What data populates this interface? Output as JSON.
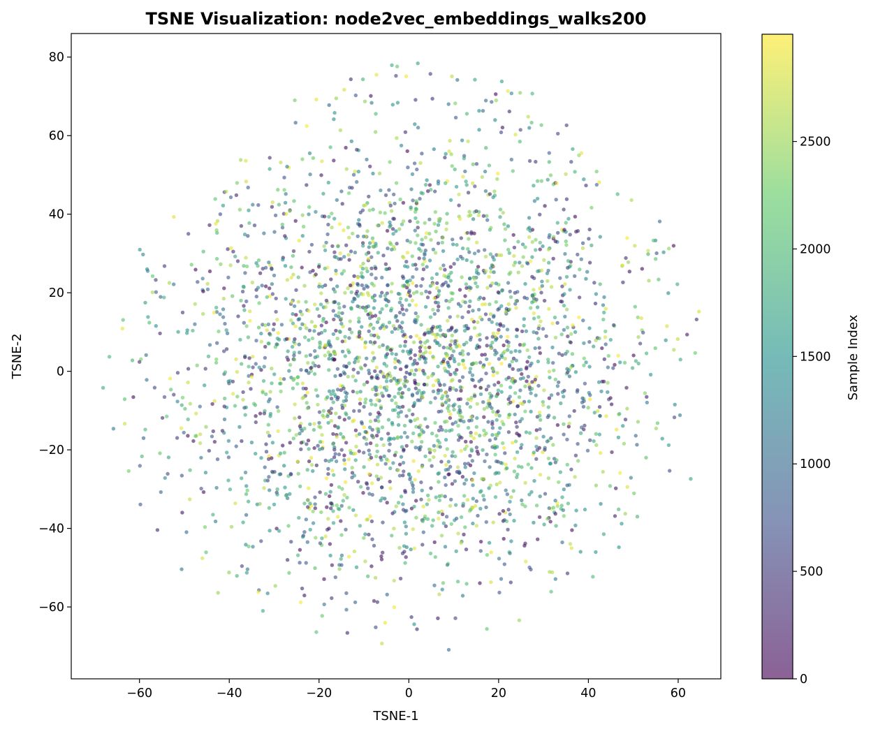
{
  "chart_data": {
    "type": "scatter",
    "title": "TSNE Visualization: node2vec_embeddings_walks200",
    "xlabel": "TSNE-1",
    "ylabel": "TSNE-2",
    "xlim": [
      -75.2,
      69.5
    ],
    "ylim": [
      -78.3,
      86.0
    ],
    "x_ticks": [
      -60,
      -40,
      -20,
      0,
      20,
      40,
      60
    ],
    "x_tick_labels": [
      "−60",
      "−40",
      "−20",
      "0",
      "20",
      "40",
      "60"
    ],
    "y_ticks": [
      -60,
      -40,
      -20,
      0,
      20,
      40,
      60,
      80
    ],
    "y_tick_labels": [
      "−60",
      "−40",
      "−20",
      "0",
      "20",
      "40",
      "60",
      "80"
    ],
    "grid": false,
    "colormap": "viridis",
    "point_alpha": 0.6,
    "n_points": 3000,
    "colorbar": {
      "label": "Sample Index",
      "min": 0,
      "max": 2999,
      "ticks": [
        0,
        500,
        1000,
        1500,
        2000,
        2500
      ],
      "tick_labels": [
        "0",
        "500",
        "1000",
        "1500",
        "2000",
        "2500"
      ]
    },
    "sample_points": [
      {
        "x": -68.1,
        "y": -4.2,
        "c": 1800
      },
      {
        "x": -66.7,
        "y": 3.7,
        "c": 1900
      },
      {
        "x": -63.8,
        "y": 10.9,
        "c": 2900
      },
      {
        "x": -65.8,
        "y": -14.6,
        "c": 1200
      },
      {
        "x": -63.3,
        "y": -7.1,
        "c": 2100
      },
      {
        "x": -62.4,
        "y": -25.4,
        "c": 2300
      },
      {
        "x": -60.0,
        "y": 2.4,
        "c": 400
      },
      {
        "x": -59.8,
        "y": -33.9,
        "c": 800
      },
      {
        "x": -57.1,
        "y": 20.1,
        "c": 2600
      },
      {
        "x": -56.0,
        "y": -40.4,
        "c": 300
      },
      {
        "x": -50.6,
        "y": -50.4,
        "c": 1100
      },
      {
        "x": -46.0,
        "y": -47.6,
        "c": 2800
      },
      {
        "x": -42.5,
        "y": -56.4,
        "c": 2500
      },
      {
        "x": -48.8,
        "y": -32.6,
        "c": 2700
      },
      {
        "x": -49.1,
        "y": 35.0,
        "c": 500
      },
      {
        "x": -42.0,
        "y": 40.0,
        "c": 700
      },
      {
        "x": -35.8,
        "y": 46.8,
        "c": 900
      },
      {
        "x": -31.0,
        "y": 51.5,
        "c": 1700
      },
      {
        "x": -25.4,
        "y": 69.0,
        "c": 2300
      },
      {
        "x": -20.6,
        "y": 69.2,
        "c": 2900
      },
      {
        "x": -14.4,
        "y": 71.7,
        "c": 2800
      },
      {
        "x": -7.2,
        "y": 75.5,
        "c": 2900
      },
      {
        "x": -2.6,
        "y": 77.6,
        "c": 2200
      },
      {
        "x": 2.0,
        "y": 78.4,
        "c": 1700
      },
      {
        "x": 9.6,
        "y": 75.1,
        "c": 2700
      },
      {
        "x": 20.7,
        "y": 73.8,
        "c": 1600
      },
      {
        "x": 24.8,
        "y": 70.9,
        "c": 2400
      },
      {
        "x": 33.2,
        "y": 60.5,
        "c": 600
      },
      {
        "x": 37.9,
        "y": 55.0,
        "c": 2500
      },
      {
        "x": 46.5,
        "y": 45.1,
        "c": 1900
      },
      {
        "x": 49.6,
        "y": 43.6,
        "c": 2600
      },
      {
        "x": 54.5,
        "y": 33.3,
        "c": 2100
      },
      {
        "x": 57.8,
        "y": 19.9,
        "c": 1400
      },
      {
        "x": 59.9,
        "y": 8.2,
        "c": 2700
      },
      {
        "x": 60.5,
        "y": 3.0,
        "c": 1800
      },
      {
        "x": 62.8,
        "y": -27.4,
        "c": 1700
      },
      {
        "x": 57.9,
        "y": -18.8,
        "c": 1600
      },
      {
        "x": 55.4,
        "y": -13.2,
        "c": 2200
      },
      {
        "x": 50.9,
        "y": -37.0,
        "c": 1900
      },
      {
        "x": 46.8,
        "y": -44.8,
        "c": 1500
      },
      {
        "x": 41.0,
        "y": -52.3,
        "c": 2000
      },
      {
        "x": 31.7,
        "y": -56.1,
        "c": 2100
      },
      {
        "x": 24.6,
        "y": -63.4,
        "c": 2500
      },
      {
        "x": 17.4,
        "y": -65.6,
        "c": 2200
      },
      {
        "x": 8.9,
        "y": -70.9,
        "c": 1000
      },
      {
        "x": 1.2,
        "y": -64.4,
        "c": 1500
      },
      {
        "x": -6.0,
        "y": -69.3,
        "c": 2700
      },
      {
        "x": -13.7,
        "y": -66.6,
        "c": 300
      },
      {
        "x": -20.6,
        "y": -66.4,
        "c": 2100
      },
      {
        "x": -32.5,
        "y": -61.0,
        "c": 1800
      },
      {
        "x": -3.2,
        "y": -35.8,
        "c": 1100
      },
      {
        "x": 5.1,
        "y": -24.1,
        "c": 600
      },
      {
        "x": -9.5,
        "y": -17.3,
        "c": 2400
      },
      {
        "x": 12.3,
        "y": 6.8,
        "c": 1200
      },
      {
        "x": 0.4,
        "y": 3.3,
        "c": 200
      },
      {
        "x": -15.4,
        "y": 10.2,
        "c": 2000
      },
      {
        "x": 18.6,
        "y": 22.4,
        "c": 2600
      },
      {
        "x": 27.2,
        "y": -5.6,
        "c": 1300
      },
      {
        "x": -28.6,
        "y": -20.9,
        "c": 1700
      },
      {
        "x": 35.5,
        "y": 28.1,
        "c": 1900
      }
    ]
  },
  "colors": {
    "colormap_stops": [
      "#440154",
      "#3b528b",
      "#21918c",
      "#5ec962",
      "#fde725"
    ],
    "axes": "#000000",
    "background": "#ffffff"
  }
}
